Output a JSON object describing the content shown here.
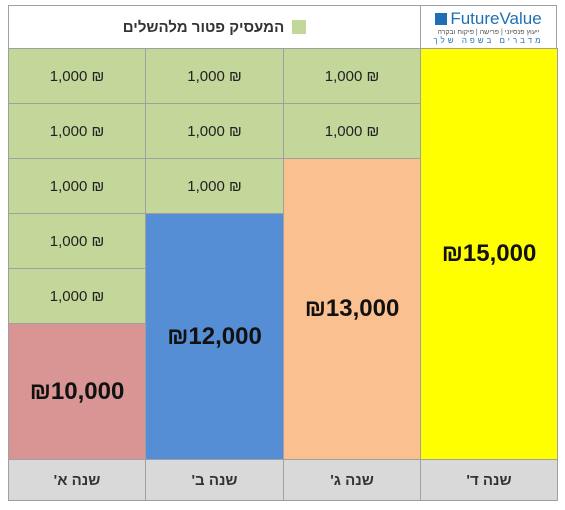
{
  "header": {
    "legend": "המעסיק פטור מלהשלים",
    "logo": {
      "name": "FutureValue",
      "tagline": "ייעוץ פנסיוני | פרישה | פיקוח ובקרה",
      "slogan": "מדברים בשפה שלך"
    }
  },
  "columns": [
    {
      "label": "שנה א'",
      "cells": [
        "1,000 ₪",
        "1,000 ₪",
        "1,000 ₪",
        "1,000 ₪",
        "1,000 ₪"
      ],
      "amount": "₪10,000",
      "color": "#d99594"
    },
    {
      "label": "שנה ב'",
      "cells": [
        "1,000 ₪",
        "1,000 ₪",
        "1,000 ₪"
      ],
      "amount": "₪12,000",
      "color": "#558ed5"
    },
    {
      "label": "שנה ג'",
      "cells": [
        "1,000 ₪",
        "1,000 ₪"
      ],
      "amount": "₪13,000",
      "color": "#fac090"
    },
    {
      "label": "שנה ד'",
      "cells": [],
      "amount": "₪15,000",
      "color": "#ffff00"
    }
  ]
}
